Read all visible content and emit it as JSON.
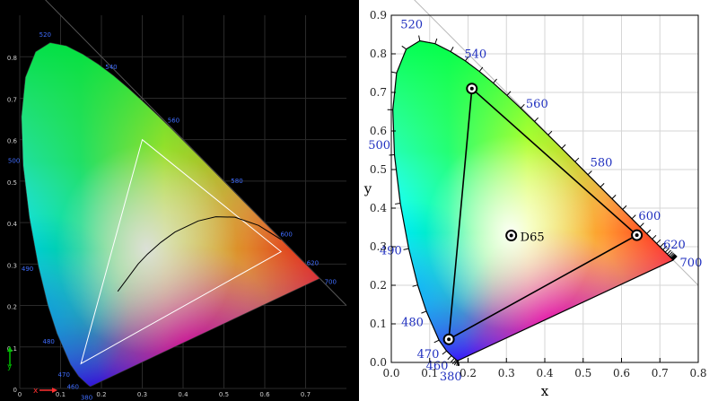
{
  "colors": {
    "left_background": "#000000",
    "right_background": "#ffffff",
    "left_axis_text": "#d0d0d0",
    "left_wavelength_text": "#3f6dff",
    "left_triangle": "#ffffff",
    "left_planckian": "#000000",
    "right_axis_text": "#222222",
    "right_wavelength_text": "#1f2fbf",
    "right_triangle": "#000000",
    "right_grid": "#d6d6d6",
    "left_grid": "#2a2a2a"
  },
  "icons": {
    "left_axes_indicator": "axis-arrows-icon",
    "right_markers": "ring-point-icon"
  },
  "chart_data": [
    {
      "type": "scatter",
      "panel": "left",
      "title": "",
      "xlabel": "x",
      "ylabel": "y",
      "xlim": [
        0,
        0.8
      ],
      "ylim": [
        0,
        0.9
      ],
      "grid": true,
      "x_ticks": [
        "0",
        "0.1",
        "0.2",
        "0.3",
        "0.4",
        "0.5",
        "0.6",
        "0.7"
      ],
      "y_ticks": [
        "0",
        "0.1",
        "0.2",
        "0.3",
        "0.4",
        "0.5",
        "0.6",
        "0.7",
        "0.8"
      ],
      "spectral_locus_labels": [
        {
          "label": "380",
          "x": 0.175,
          "y": 0.005
        },
        {
          "label": "460",
          "x": 0.144,
          "y": 0.03
        },
        {
          "label": "470",
          "x": 0.124,
          "y": 0.058
        },
        {
          "label": "480",
          "x": 0.091,
          "y": 0.133
        },
        {
          "label": "490",
          "x": 0.045,
          "y": 0.295
        },
        {
          "label": "500",
          "x": 0.008,
          "y": 0.538
        },
        {
          "label": "520",
          "x": 0.074,
          "y": 0.834
        },
        {
          "label": "540",
          "x": 0.23,
          "y": 0.754
        },
        {
          "label": "560",
          "x": 0.373,
          "y": 0.624
        },
        {
          "label": "580",
          "x": 0.512,
          "y": 0.487
        },
        {
          "label": "600",
          "x": 0.627,
          "y": 0.372
        },
        {
          "label": "620",
          "x": 0.691,
          "y": 0.308
        },
        {
          "label": "700",
          "x": 0.735,
          "y": 0.265
        }
      ],
      "triangle": [
        {
          "x": 0.3,
          "y": 0.6
        },
        {
          "x": 0.64,
          "y": 0.33
        },
        {
          "x": 0.15,
          "y": 0.06
        }
      ],
      "planckian_locus": [
        {
          "x": 0.24,
          "y": 0.234
        },
        {
          "x": 0.265,
          "y": 0.267
        },
        {
          "x": 0.29,
          "y": 0.3
        },
        {
          "x": 0.313,
          "y": 0.324
        },
        {
          "x": 0.345,
          "y": 0.352
        },
        {
          "x": 0.38,
          "y": 0.377
        },
        {
          "x": 0.437,
          "y": 0.404
        },
        {
          "x": 0.48,
          "y": 0.414
        },
        {
          "x": 0.527,
          "y": 0.413
        },
        {
          "x": 0.585,
          "y": 0.393
        },
        {
          "x": 0.64,
          "y": 0.359
        }
      ]
    },
    {
      "type": "scatter",
      "panel": "right",
      "title": "",
      "xlabel": "x",
      "ylabel": "y",
      "xlim": [
        0,
        0.8
      ],
      "ylim": [
        0,
        0.9
      ],
      "grid": true,
      "x_ticks": [
        "0.0",
        "0.1",
        "0.2",
        "0.3",
        "0.4",
        "0.5",
        "0.6",
        "0.7",
        "0.8"
      ],
      "y_ticks": [
        "0.0",
        "0.1",
        "0.2",
        "0.3",
        "0.4",
        "0.5",
        "0.6",
        "0.7",
        "0.8",
        "0.9"
      ],
      "spectral_locus_labels": [
        {
          "label": "380",
          "x": 0.175,
          "y": 0.005
        },
        {
          "label": "460",
          "x": 0.144,
          "y": 0.03
        },
        {
          "label": "470",
          "x": 0.124,
          "y": 0.058
        },
        {
          "label": "480",
          "x": 0.091,
          "y": 0.133
        },
        {
          "label": "490",
          "x": 0.045,
          "y": 0.295
        },
        {
          "label": "500",
          "x": 0.008,
          "y": 0.538
        },
        {
          "label": "520",
          "x": 0.074,
          "y": 0.834
        },
        {
          "label": "540",
          "x": 0.23,
          "y": 0.754
        },
        {
          "label": "560",
          "x": 0.373,
          "y": 0.624
        },
        {
          "label": "580",
          "x": 0.512,
          "y": 0.487
        },
        {
          "label": "600",
          "x": 0.627,
          "y": 0.372
        },
        {
          "label": "620",
          "x": 0.691,
          "y": 0.308
        },
        {
          "label": "700",
          "x": 0.735,
          "y": 0.265
        }
      ],
      "triangle": [
        {
          "x": 0.21,
          "y": 0.71
        },
        {
          "x": 0.64,
          "y": 0.33
        },
        {
          "x": 0.15,
          "y": 0.06
        }
      ],
      "points": [
        {
          "label": "",
          "x": 0.21,
          "y": 0.71
        },
        {
          "label": "",
          "x": 0.64,
          "y": 0.33
        },
        {
          "label": "",
          "x": 0.15,
          "y": 0.06
        },
        {
          "label": "D65",
          "x": 0.3127,
          "y": 0.329
        }
      ]
    }
  ],
  "locus_curve": [
    [
      0.1741,
      0.005
    ],
    [
      0.1738,
      0.0049
    ],
    [
      0.1733,
      0.0048
    ],
    [
      0.1726,
      0.0048
    ],
    [
      0.1714,
      0.0051
    ],
    [
      0.1689,
      0.0069
    ],
    [
      0.1644,
      0.0109
    ],
    [
      0.1566,
      0.0177
    ],
    [
      0.144,
      0.0297
    ],
    [
      0.1241,
      0.0578
    ],
    [
      0.0913,
      0.1327
    ],
    [
      0.0687,
      0.2007
    ],
    [
      0.0454,
      0.295
    ],
    [
      0.0235,
      0.4127
    ],
    [
      0.0082,
      0.5384
    ],
    [
      0.0039,
      0.6548
    ],
    [
      0.0139,
      0.7502
    ],
    [
      0.0389,
      0.812
    ],
    [
      0.0743,
      0.8338
    ],
    [
      0.1142,
      0.8262
    ],
    [
      0.1547,
      0.8059
    ],
    [
      0.1929,
      0.7816
    ],
    [
      0.2296,
      0.7543
    ],
    [
      0.2658,
      0.7243
    ],
    [
      0.3016,
      0.6923
    ],
    [
      0.3373,
      0.6589
    ],
    [
      0.3731,
      0.6245
    ],
    [
      0.4087,
      0.5896
    ],
    [
      0.4441,
      0.5547
    ],
    [
      0.4788,
      0.5202
    ],
    [
      0.5125,
      0.4866
    ],
    [
      0.5448,
      0.4544
    ],
    [
      0.5752,
      0.4242
    ],
    [
      0.6029,
      0.3965
    ],
    [
      0.627,
      0.3725
    ],
    [
      0.6482,
      0.3514
    ],
    [
      0.6658,
      0.334
    ],
    [
      0.6801,
      0.3197
    ],
    [
      0.6915,
      0.3083
    ],
    [
      0.7006,
      0.2993
    ],
    [
      0.7079,
      0.292
    ],
    [
      0.714,
      0.2859
    ],
    [
      0.719,
      0.2809
    ],
    [
      0.723,
      0.277
    ],
    [
      0.726,
      0.274
    ],
    [
      0.7283,
      0.2717
    ],
    [
      0.73,
      0.27
    ],
    [
      0.7311,
      0.2689
    ],
    [
      0.732,
      0.268
    ],
    [
      0.7327,
      0.2673
    ],
    [
      0.7334,
      0.2666
    ],
    [
      0.734,
      0.266
    ],
    [
      0.7344,
      0.2656
    ],
    [
      0.7346,
      0.2654
    ],
    [
      0.7347,
      0.2653
    ]
  ]
}
